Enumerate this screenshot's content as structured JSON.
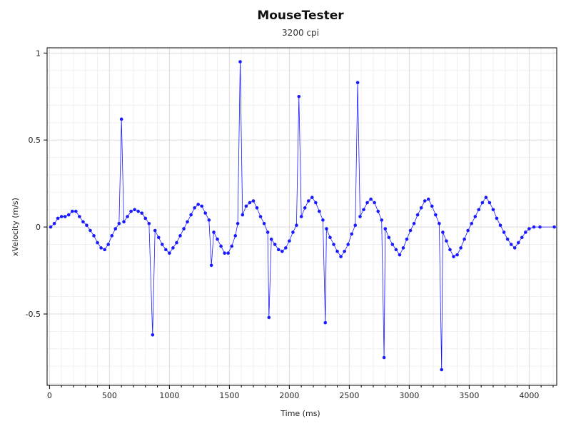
{
  "chart_data": {
    "type": "scatter",
    "title": "MouseTester",
    "subtitle": "3200 cpi",
    "xlabel": "Time (ms)",
    "ylabel": "xVelocity (m/s)",
    "xlim": [
      -20,
      4230
    ],
    "ylim": [
      -0.91,
      1.03
    ],
    "xticks": [
      0,
      500,
      1000,
      1500,
      2000,
      2500,
      3000,
      3500,
      4000
    ],
    "xtick_labels": [
      "0",
      "500",
      "1000",
      "1500",
      "2000",
      "2500",
      "3000",
      "3500",
      "4000"
    ],
    "yticks": [
      1,
      0.5,
      0,
      -0.5
    ],
    "ytick_labels": [
      "1",
      "0.5",
      "0",
      "-0.5"
    ],
    "grid": true,
    "colors": {
      "series": "#1a1aff",
      "grid": "#e6e6e6",
      "frame": "#000000"
    },
    "series": [
      {
        "style": "line-and-markers",
        "points": [
          [
            10,
            0.0
          ],
          [
            40,
            0.02
          ],
          [
            70,
            0.05
          ],
          [
            100,
            0.06
          ],
          [
            130,
            0.06
          ],
          [
            160,
            0.07
          ],
          [
            190,
            0.09
          ],
          [
            220,
            0.09
          ],
          [
            250,
            0.06
          ],
          [
            280,
            0.03
          ],
          [
            310,
            0.01
          ],
          [
            340,
            -0.02
          ],
          [
            370,
            -0.05
          ],
          [
            400,
            -0.09
          ],
          [
            430,
            -0.12
          ],
          [
            460,
            -0.13
          ],
          [
            490,
            -0.1
          ],
          [
            520,
            -0.05
          ],
          [
            550,
            -0.01
          ],
          [
            580,
            0.02
          ],
          [
            600,
            0.62
          ],
          [
            620,
            0.03
          ],
          [
            650,
            0.06
          ],
          [
            680,
            0.09
          ],
          [
            710,
            0.1
          ],
          [
            740,
            0.09
          ],
          [
            770,
            0.08
          ],
          [
            800,
            0.05
          ],
          [
            830,
            0.02
          ],
          [
            860,
            -0.62
          ],
          [
            880,
            -0.02
          ],
          [
            910,
            -0.06
          ],
          [
            940,
            -0.1
          ],
          [
            970,
            -0.13
          ],
          [
            1000,
            -0.15
          ],
          [
            1030,
            -0.12
          ],
          [
            1060,
            -0.09
          ],
          [
            1090,
            -0.05
          ],
          [
            1120,
            -0.01
          ],
          [
            1150,
            0.03
          ],
          [
            1180,
            0.07
          ],
          [
            1210,
            0.11
          ],
          [
            1240,
            0.13
          ],
          [
            1270,
            0.12
          ],
          [
            1300,
            0.08
          ],
          [
            1330,
            0.04
          ],
          [
            1350,
            -0.22
          ],
          [
            1370,
            -0.03
          ],
          [
            1400,
            -0.07
          ],
          [
            1430,
            -0.11
          ],
          [
            1460,
            -0.15
          ],
          [
            1490,
            -0.15
          ],
          [
            1520,
            -0.11
          ],
          [
            1550,
            -0.05
          ],
          [
            1570,
            0.02
          ],
          [
            1590,
            0.95
          ],
          [
            1610,
            0.07
          ],
          [
            1640,
            0.12
          ],
          [
            1670,
            0.14
          ],
          [
            1700,
            0.15
          ],
          [
            1730,
            0.11
          ],
          [
            1760,
            0.06
          ],
          [
            1790,
            0.02
          ],
          [
            1820,
            -0.03
          ],
          [
            1830,
            -0.52
          ],
          [
            1850,
            -0.07
          ],
          [
            1880,
            -0.1
          ],
          [
            1910,
            -0.13
          ],
          [
            1940,
            -0.14
          ],
          [
            1970,
            -0.12
          ],
          [
            2000,
            -0.08
          ],
          [
            2030,
            -0.03
          ],
          [
            2060,
            0.01
          ],
          [
            2080,
            0.75
          ],
          [
            2100,
            0.06
          ],
          [
            2130,
            0.11
          ],
          [
            2160,
            0.15
          ],
          [
            2190,
            0.17
          ],
          [
            2220,
            0.14
          ],
          [
            2250,
            0.09
          ],
          [
            2280,
            0.04
          ],
          [
            2300,
            -0.55
          ],
          [
            2310,
            -0.01
          ],
          [
            2340,
            -0.06
          ],
          [
            2370,
            -0.1
          ],
          [
            2400,
            -0.14
          ],
          [
            2430,
            -0.17
          ],
          [
            2460,
            -0.14
          ],
          [
            2490,
            -0.1
          ],
          [
            2520,
            -0.04
          ],
          [
            2550,
            0.01
          ],
          [
            2570,
            0.83
          ],
          [
            2590,
            0.06
          ],
          [
            2620,
            0.1
          ],
          [
            2650,
            0.14
          ],
          [
            2680,
            0.16
          ],
          [
            2710,
            0.14
          ],
          [
            2740,
            0.09
          ],
          [
            2770,
            0.04
          ],
          [
            2790,
            -0.75
          ],
          [
            2800,
            -0.01
          ],
          [
            2830,
            -0.06
          ],
          [
            2860,
            -0.1
          ],
          [
            2890,
            -0.13
          ],
          [
            2920,
            -0.16
          ],
          [
            2950,
            -0.12
          ],
          [
            2980,
            -0.07
          ],
          [
            3010,
            -0.02
          ],
          [
            3040,
            0.02
          ],
          [
            3070,
            0.07
          ],
          [
            3100,
            0.11
          ],
          [
            3130,
            0.15
          ],
          [
            3160,
            0.16
          ],
          [
            3190,
            0.12
          ],
          [
            3220,
            0.07
          ],
          [
            3250,
            0.02
          ],
          [
            3270,
            -0.82
          ],
          [
            3280,
            -0.03
          ],
          [
            3310,
            -0.08
          ],
          [
            3340,
            -0.13
          ],
          [
            3370,
            -0.17
          ],
          [
            3400,
            -0.16
          ],
          [
            3430,
            -0.12
          ],
          [
            3460,
            -0.07
          ],
          [
            3490,
            -0.02
          ],
          [
            3520,
            0.02
          ],
          [
            3550,
            0.06
          ],
          [
            3580,
            0.1
          ],
          [
            3610,
            0.14
          ],
          [
            3640,
            0.17
          ],
          [
            3670,
            0.14
          ],
          [
            3700,
            0.1
          ],
          [
            3730,
            0.05
          ],
          [
            3760,
            0.01
          ],
          [
            3790,
            -0.03
          ],
          [
            3820,
            -0.07
          ],
          [
            3850,
            -0.1
          ],
          [
            3880,
            -0.12
          ],
          [
            3910,
            -0.09
          ],
          [
            3940,
            -0.06
          ],
          [
            3970,
            -0.03
          ],
          [
            4000,
            -0.01
          ],
          [
            4040,
            0.0
          ],
          [
            4090,
            0.0
          ],
          [
            4210,
            0.0
          ]
        ]
      }
    ]
  }
}
